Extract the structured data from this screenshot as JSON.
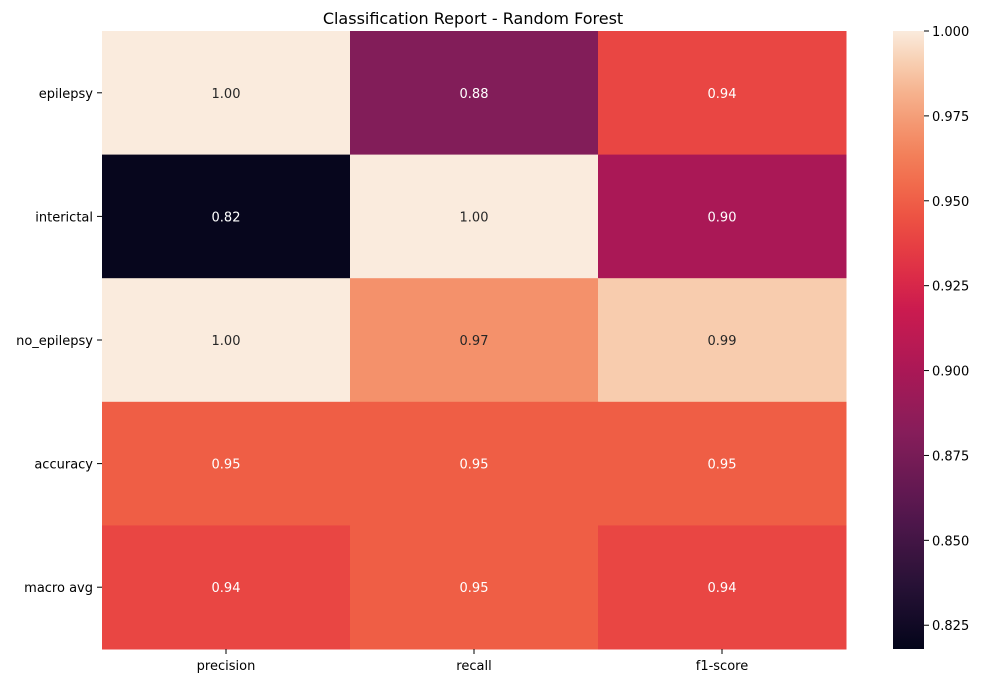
{
  "chart_data": {
    "type": "heatmap",
    "title": "Classification Report - Random Forest",
    "rows": [
      "epilepsy",
      "interictal",
      "no_epilepsy",
      "accuracy",
      "macro avg"
    ],
    "columns": [
      "precision",
      "recall",
      "f1-score"
    ],
    "values": [
      [
        1.0,
        0.88,
        0.94
      ],
      [
        0.82,
        1.0,
        0.9
      ],
      [
        1.0,
        0.97,
        0.99
      ],
      [
        0.95,
        0.95,
        0.95
      ],
      [
        0.94,
        0.95,
        0.94
      ]
    ],
    "cell_labels": [
      [
        "1.00",
        "0.88",
        "0.94"
      ],
      [
        "0.82",
        "1.00",
        "0.90"
      ],
      [
        "1.00",
        "0.97",
        "0.99"
      ],
      [
        "0.95",
        "0.95",
        "0.95"
      ],
      [
        "0.94",
        "0.95",
        "0.94"
      ]
    ],
    "colormap": "rocket",
    "colorbar": {
      "vmin": 0.818,
      "vmax": 1.0,
      "ticks": [
        0.825,
        0.85,
        0.875,
        0.9,
        0.925,
        0.95,
        0.975,
        1.0
      ],
      "tick_labels": [
        "0.825",
        "0.850",
        "0.875",
        "0.900",
        "0.925",
        "0.950",
        "0.975",
        "1.000"
      ]
    },
    "xlabel": "",
    "ylabel": "",
    "grid": false,
    "legend": "colorbar-right"
  }
}
